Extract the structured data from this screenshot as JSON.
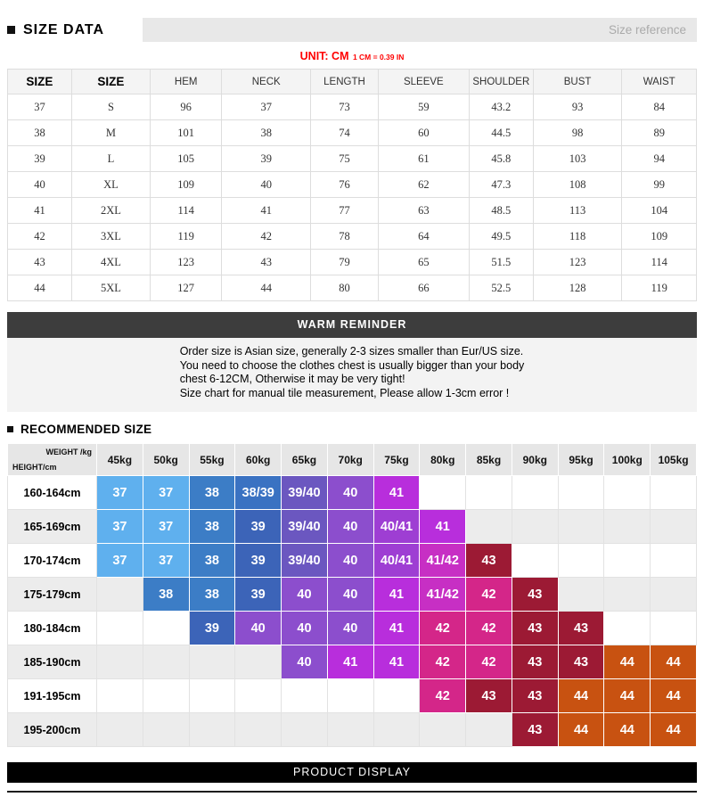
{
  "header": {
    "title": "SIZE DATA",
    "right_label": "Size reference"
  },
  "unit_note": {
    "main": "UNIT: CM",
    "sub": "1 CM = 0.39 IN"
  },
  "size_table": {
    "columns": [
      "SIZE",
      "SIZE",
      "HEM",
      "NECK",
      "LENGTH",
      "SLEEVE",
      "SHOULDER",
      "BUST",
      "WAIST"
    ],
    "rows": [
      [
        "37",
        "S",
        "96",
        "37",
        "73",
        "59",
        "43.2",
        "93",
        "84"
      ],
      [
        "38",
        "M",
        "101",
        "38",
        "74",
        "60",
        "44.5",
        "98",
        "89"
      ],
      [
        "39",
        "L",
        "105",
        "39",
        "75",
        "61",
        "45.8",
        "103",
        "94"
      ],
      [
        "40",
        "XL",
        "109",
        "40",
        "76",
        "62",
        "47.3",
        "108",
        "99"
      ],
      [
        "41",
        "2XL",
        "114",
        "41",
        "77",
        "63",
        "48.5",
        "113",
        "104"
      ],
      [
        "42",
        "3XL",
        "119",
        "42",
        "78",
        "64",
        "49.5",
        "118",
        "109"
      ],
      [
        "43",
        "4XL",
        "123",
        "43",
        "79",
        "65",
        "51.5",
        "123",
        "114"
      ],
      [
        "44",
        "5XL",
        "127",
        "44",
        "80",
        "66",
        "52.5",
        "128",
        "119"
      ]
    ]
  },
  "warm_reminder": {
    "title": "WARM REMINDER",
    "lines": [
      "Order size is Asian size, generally 2-3 sizes smaller than Eur/US size.",
      "You need to choose the clothes chest is usually bigger than your body",
      "chest 6-12CM, Otherwise it may be very tight!",
      "Size chart for manual tile measurement, Please allow 1-3cm error !"
    ]
  },
  "recommended": {
    "title": "RECOMMENDED SIZE",
    "corner": {
      "top": "WEIGHT /kg",
      "bottom": "HEIGHT/cm"
    },
    "weights": [
      "45kg",
      "50kg",
      "55kg",
      "60kg",
      "65kg",
      "70kg",
      "75kg",
      "80kg",
      "85kg",
      "90kg",
      "95kg",
      "100kg",
      "105kg"
    ],
    "rows": [
      {
        "height": "160-164cm",
        "cells": [
          "37",
          "37",
          "38",
          "38/39",
          "39/40",
          "40",
          "41",
          "",
          "",
          "",
          "",
          "",
          ""
        ]
      },
      {
        "height": "165-169cm",
        "cells": [
          "37",
          "37",
          "38",
          "39",
          "39/40",
          "40",
          "40/41",
          "41",
          "",
          "",
          "",
          "",
          ""
        ]
      },
      {
        "height": "170-174cm",
        "cells": [
          "37",
          "37",
          "38",
          "39",
          "39/40",
          "40",
          "40/41",
          "41/42",
          "43",
          "",
          "",
          "",
          ""
        ]
      },
      {
        "height": "175-179cm",
        "cells": [
          "",
          "38",
          "38",
          "39",
          "40",
          "40",
          "41",
          "41/42",
          "42",
          "43",
          "",
          "",
          ""
        ]
      },
      {
        "height": "180-184cm",
        "cells": [
          "",
          "",
          "39",
          "40",
          "40",
          "40",
          "41",
          "42",
          "42",
          "43",
          "43",
          "",
          ""
        ]
      },
      {
        "height": "185-190cm",
        "cells": [
          "",
          "",
          "",
          "",
          "40",
          "41",
          "41",
          "42",
          "42",
          "43",
          "43",
          "44",
          "44"
        ]
      },
      {
        "height": "191-195cm",
        "cells": [
          "",
          "",
          "",
          "",
          "",
          "",
          "",
          "42",
          "43",
          "43",
          "44",
          "44",
          "44"
        ]
      },
      {
        "height": "195-200cm",
        "cells": [
          "",
          "",
          "",
          "",
          "",
          "",
          "",
          "",
          "",
          "43",
          "44",
          "44",
          "44"
        ]
      }
    ],
    "size_colors": {
      "37": "#5fb0ee",
      "38": "#3c7dc6",
      "38/39": "#3a72c2",
      "39": "#3c64b8",
      "39/40": "#6b57c0",
      "40": "#8c4ecd",
      "40/41": "#9e3ed3",
      "41": "#b82edc",
      "41/42": "#c72fc4",
      "42": "#d42689",
      "43": "#9c1a34",
      "44": "#c85211"
    }
  },
  "footer": {
    "title": "PRODUCT DISPLAY"
  }
}
